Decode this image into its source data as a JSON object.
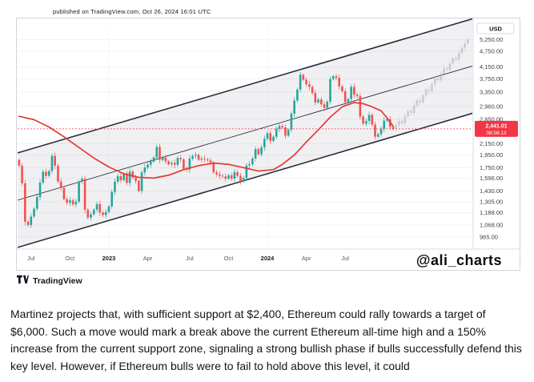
{
  "header": {
    "published": "published on TradingView.com, Oct 26, 2024 16:01 UTC"
  },
  "watermark": "@ali_charts",
  "footer": {
    "brand": "TradingView"
  },
  "article": {
    "text": "Martinez projects that, with sufficient support at $2,400, Ethereum could rally towards a target of $6,000. Such a move would mark a break above the current Ethereum all-time high and a 150% increase from the current support zone, signaling a strong bullish phase if bulls successfully defend this key level. However, if Ethereum bulls were to fail to hold above this level, it could"
  },
  "chart_data": {
    "type": "candlestick",
    "symbol_currency": "USD",
    "ylim": [
      870,
      5800
    ],
    "total_slots": 152,
    "projection_start_week": 126,
    "last_price": "2,441.01",
    "last_price_value": 2441.01,
    "countdown": "08:56:12",
    "weekly_closes": [
      1780,
      1530,
      1100,
      1070,
      1150,
      1230,
      1360,
      1540,
      1690,
      1630,
      1700,
      1935,
      1780,
      1554,
      1470,
      1335,
      1294,
      1322,
      1276,
      1307,
      1555,
      1590,
      1218,
      1140,
      1172,
      1220,
      1280,
      1190,
      1165,
      1196,
      1255,
      1420,
      1550,
      1628,
      1572,
      1665,
      1535,
      1692,
      1608,
      1562,
      1432,
      1680,
      1752,
      1796,
      1843,
      1911,
      2090,
      1870,
      1905,
      1848,
      1802,
      1822,
      1793,
      1900,
      1878,
      1732,
      1721,
      1890,
      1934,
      1952,
      1872,
      1888,
      1878,
      1862,
      1832,
      1682,
      1652,
      1632,
      1622,
      1592,
      1638,
      1592,
      1682,
      1632,
      1552,
      1602,
      1782,
      1802,
      1892,
      2052,
      1962,
      2082,
      2242,
      2352,
      2202,
      2282,
      2442,
      2502,
      2472,
      2302,
      2422,
      2782,
      3112,
      3422,
      3882,
      3722,
      3582,
      3502,
      3322,
      3062,
      3142,
      3012,
      2922,
      3082,
      3742,
      3832,
      3782,
      3512,
      3372,
      3072,
      3152,
      3502,
      3272,
      3232,
      2712,
      2552,
      2612,
      2752,
      2532,
      2282,
      2332,
      2442,
      2622,
      2652,
      2482,
      2441
    ],
    "projection_closes": [
      2520,
      2610,
      2560,
      2720,
      2850,
      2800,
      2980,
      3120,
      3060,
      3260,
      3420,
      3380,
      3580,
      3760,
      3700,
      3920,
      4100,
      4060,
      4280,
      4480,
      4420,
      4680,
      4900,
      5080,
      5250
    ],
    "ma_points": [
      [
        0,
        2720
      ],
      [
        5,
        2640
      ],
      [
        10,
        2480
      ],
      [
        15,
        2280
      ],
      [
        20,
        2080
      ],
      [
        25,
        1900
      ],
      [
        30,
        1760
      ],
      [
        35,
        1660
      ],
      [
        40,
        1610
      ],
      [
        45,
        1600
      ],
      [
        50,
        1640
      ],
      [
        55,
        1720
      ],
      [
        60,
        1780
      ],
      [
        65,
        1820
      ],
      [
        70,
        1800
      ],
      [
        75,
        1750
      ],
      [
        80,
        1700
      ],
      [
        85,
        1720
      ],
      [
        88,
        1800
      ],
      [
        92,
        1950
      ],
      [
        96,
        2180
      ],
      [
        100,
        2420
      ],
      [
        104,
        2700
      ],
      [
        108,
        2950
      ],
      [
        112,
        3060
      ],
      [
        115,
        3030
      ],
      [
        118,
        2950
      ],
      [
        121,
        2850
      ],
      [
        123,
        2680
      ],
      [
        125,
        2500
      ]
    ],
    "channel": {
      "base_price": 886,
      "growth_per_week": 0.00757,
      "top_ratio": 2.25,
      "mid_ratio": 1.5
    },
    "price_axis_ticks": [
      "5,250.00",
      "4,750.00",
      "4,150.00",
      "3,750.00",
      "3,350.00",
      "2,960.00",
      "2,650.00",
      "2,150.00",
      "1,950.00",
      "1,750.00",
      "1,596.00",
      "1,430.00",
      "1,305.00",
      "1,188.00",
      "1,068.00",
      "965.00"
    ],
    "time_axis": [
      {
        "label": "Jul",
        "week": 4,
        "year": false
      },
      {
        "label": "Oct",
        "week": 17,
        "year": false
      },
      {
        "label": "2023",
        "week": 30,
        "year": true
      },
      {
        "label": "Apr",
        "week": 43,
        "year": false
      },
      {
        "label": "Jul",
        "week": 57,
        "year": false
      },
      {
        "label": "Oct",
        "week": 70,
        "year": false
      },
      {
        "label": "2024",
        "week": 83,
        "year": true
      },
      {
        "label": "Apr",
        "week": 96,
        "year": false
      },
      {
        "label": "Jul",
        "week": 109,
        "year": false
      }
    ],
    "colors": {
      "up": "#26a69a",
      "down": "#ef5350",
      "ma": "#e53935",
      "projection": "#b2b5be",
      "channel_line": "#2a2e39",
      "channel_fill": "rgba(149,152,161,0.14)",
      "price_line": "#f23645",
      "axis_text": "#3c4049",
      "grid": "#f2f3f7"
    }
  }
}
